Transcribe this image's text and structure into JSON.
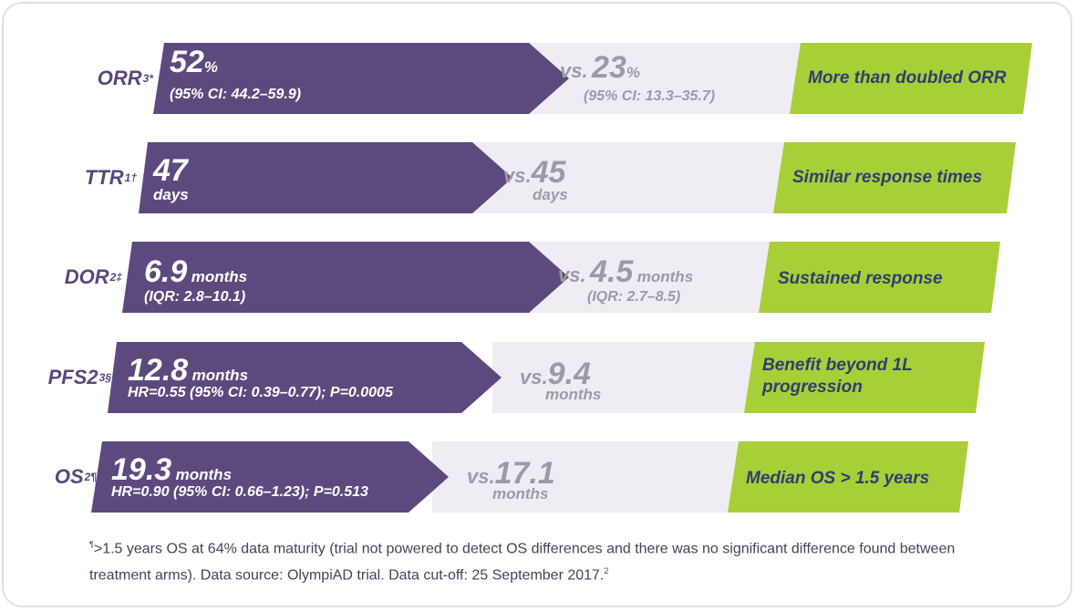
{
  "rows": [
    {
      "label": "ORR",
      "sup": "3*",
      "value": "52",
      "unit": "%",
      "ci": "(95% CI: 44.2–59.9)",
      "vs": "vs.",
      "cmp_value": "23",
      "cmp_unit": "%",
      "cmp_ci": "(95% CI: 13.3–35.7)",
      "benefit": "More than doubled ORR"
    },
    {
      "label": "TTR",
      "sup": "1†",
      "value": "47",
      "unit": "days",
      "ci": "",
      "vs": "vs.",
      "cmp_value": "45",
      "cmp_unit": "days",
      "cmp_ci": "",
      "benefit": "Similar response times"
    },
    {
      "label": "DOR",
      "sup": "2‡",
      "value": "6.9",
      "unit": "months",
      "ci": "(IQR: 2.8–10.1)",
      "vs": "vs.",
      "cmp_value": "4.5",
      "cmp_unit": "months",
      "cmp_ci": "(IQR: 2.7–8.5)",
      "benefit": "Sustained response"
    },
    {
      "label": "PFS2",
      "sup": "3§",
      "value": "12.8",
      "unit": "months",
      "ci": "HR=0.55 (95% CI: 0.39–0.77); P=0.0005",
      "vs": "vs.",
      "cmp_value": "9.4",
      "cmp_unit": "months",
      "cmp_ci": "",
      "benefit_line1": "Benefit beyond 1L",
      "benefit_line2": "progression"
    },
    {
      "label": "OS",
      "sup": "2¶",
      "value": "19.3",
      "unit": "months",
      "ci": "HR=0.90 (95% CI: 0.66–1.23); P=0.513",
      "vs": "vs.",
      "cmp_value": "17.1",
      "cmp_unit": "months",
      "cmp_ci": "",
      "benefit": "Median OS > 1.5 years"
    }
  ],
  "footnote": {
    "mark": "¶",
    "text": ">1.5 years OS at 64% data maturity (trial not powered to detect OS differences and there was no significant difference found between treatment arms). Data source: OlympiAD trial. Data cut-off: 25 September 2017.",
    "ref": "2"
  }
}
